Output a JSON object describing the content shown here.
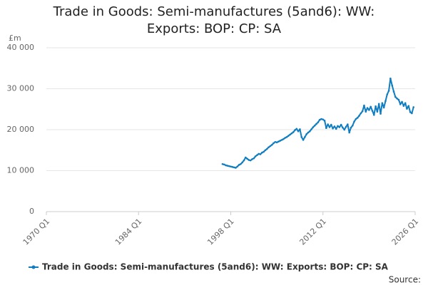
{
  "chart_data": {
    "type": "line",
    "title": "Trade in Goods: Semi-manufactures (5and6): WW: Exports: BOP: CP: SA",
    "y_unit_label": "£m",
    "source": "Source:",
    "grid": true,
    "xlim": [
      "1970 Q1",
      "2026 Q1"
    ],
    "xticks": [
      "1970 Q1",
      "1984 Q1",
      "1998 Q1",
      "2012 Q1",
      "2026 Q1"
    ],
    "ylim": [
      0,
      40000
    ],
    "yticks": [
      0,
      {
        "value": 10000,
        "label": "10 000"
      },
      {
        "value": 20000,
        "label": "20 000"
      },
      {
        "value": 30000,
        "label": "30 000"
      },
      {
        "value": 40000,
        "label": "40 000"
      }
    ],
    "x": [
      "1996 Q4",
      "1997 Q1",
      "1997 Q2",
      "1997 Q3",
      "1997 Q4",
      "1998 Q1",
      "1998 Q2",
      "1998 Q3",
      "1998 Q4",
      "1999 Q1",
      "1999 Q2",
      "1999 Q3",
      "1999 Q4",
      "2000 Q1",
      "2000 Q2",
      "2000 Q3",
      "2000 Q4",
      "2001 Q1",
      "2001 Q2",
      "2001 Q3",
      "2001 Q4",
      "2002 Q1",
      "2002 Q2",
      "2002 Q3",
      "2002 Q4",
      "2003 Q1",
      "2003 Q2",
      "2003 Q3",
      "2003 Q4",
      "2004 Q1",
      "2004 Q2",
      "2004 Q3",
      "2004 Q4",
      "2005 Q1",
      "2005 Q2",
      "2005 Q3",
      "2005 Q4",
      "2006 Q1",
      "2006 Q2",
      "2006 Q3",
      "2006 Q4",
      "2007 Q1",
      "2007 Q2",
      "2007 Q3",
      "2007 Q4",
      "2008 Q1",
      "2008 Q2",
      "2008 Q3",
      "2008 Q4",
      "2009 Q1",
      "2009 Q2",
      "2009 Q3",
      "2009 Q4",
      "2010 Q1",
      "2010 Q2",
      "2010 Q3",
      "2010 Q4",
      "2011 Q1",
      "2011 Q2",
      "2011 Q3",
      "2011 Q4",
      "2012 Q1",
      "2012 Q2",
      "2012 Q3",
      "2012 Q4",
      "2013 Q1",
      "2013 Q2",
      "2013 Q3",
      "2013 Q4",
      "2014 Q1",
      "2014 Q2",
      "2014 Q3",
      "2014 Q4",
      "2015 Q1",
      "2015 Q2",
      "2015 Q3",
      "2015 Q4",
      "2016 Q1",
      "2016 Q2",
      "2016 Q3",
      "2016 Q4",
      "2017 Q1",
      "2017 Q2",
      "2017 Q3",
      "2017 Q4",
      "2018 Q1",
      "2018 Q2",
      "2018 Q3",
      "2018 Q4",
      "2019 Q1",
      "2019 Q2",
      "2019 Q3",
      "2019 Q4",
      "2020 Q1",
      "2020 Q2",
      "2020 Q3",
      "2020 Q4",
      "2021 Q1",
      "2021 Q2",
      "2021 Q3",
      "2021 Q4",
      "2022 Q1",
      "2022 Q2",
      "2022 Q3",
      "2022 Q4",
      "2023 Q1",
      "2023 Q2",
      "2023 Q3",
      "2023 Q4",
      "2024 Q1",
      "2024 Q2",
      "2024 Q3",
      "2024 Q4",
      "2025 Q1",
      "2025 Q2",
      "2025 Q3",
      "2025 Q4"
    ],
    "series": [
      {
        "name": "Trade in Goods: Semi-manufactures (5and6): WW: Exports: BOP: CP: SA",
        "color": "#0f7dc0",
        "values": [
          11600,
          11500,
          11300,
          11200,
          11100,
          11000,
          10900,
          10800,
          10700,
          11000,
          11400,
          11600,
          12000,
          12500,
          13200,
          12900,
          12600,
          12500,
          12800,
          13000,
          13500,
          13800,
          14100,
          14000,
          14400,
          14600,
          15000,
          15300,
          15700,
          16000,
          16300,
          16700,
          17000,
          16900,
          17100,
          17300,
          17500,
          17700,
          18000,
          18200,
          18500,
          18800,
          19100,
          19400,
          19900,
          20200,
          19600,
          20100,
          18200,
          17500,
          18200,
          18900,
          19300,
          19600,
          20100,
          20600,
          21000,
          21400,
          21800,
          22400,
          22600,
          22500,
          22200,
          20400,
          21300,
          20600,
          21200,
          20300,
          20800,
          20200,
          20900,
          20600,
          21200,
          20500,
          20000,
          20700,
          21300,
          19300,
          20500,
          21000,
          22000,
          22600,
          22900,
          23400,
          24000,
          24500,
          25900,
          24400,
          25300,
          24800,
          25600,
          24600,
          23600,
          25700,
          24400,
          26300,
          23900,
          26500,
          25400,
          27000,
          28600,
          29500,
          32500,
          30800,
          29300,
          28000,
          27600,
          27300,
          26200,
          26800,
          25800,
          26500,
          25100,
          25800,
          24300,
          24000,
          25500
        ]
      }
    ]
  }
}
